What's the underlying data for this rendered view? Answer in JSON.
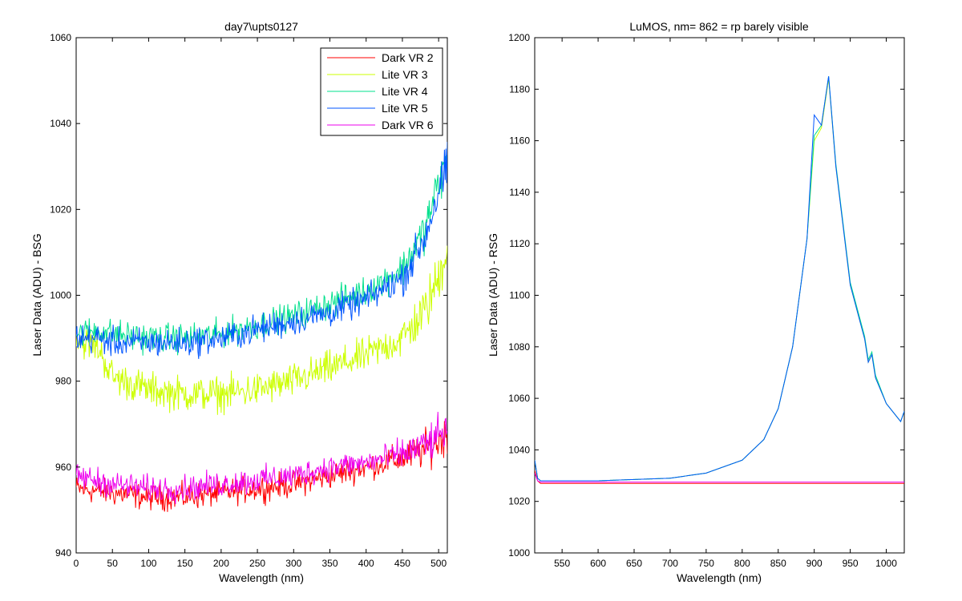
{
  "chart_data": [
    {
      "type": "line",
      "title": "day7\\upts0127",
      "xlabel": "Wavelength (nm)",
      "ylabel": "Laser Data (ADU) - BSG",
      "xlim": [
        0,
        512
      ],
      "ylim": [
        940,
        1060
      ],
      "xticks": [
        0,
        50,
        100,
        150,
        200,
        250,
        300,
        350,
        400,
        450,
        500
      ],
      "yticks": [
        940,
        960,
        980,
        1000,
        1020,
        1040,
        1060
      ],
      "legend": "top-right",
      "grid": false,
      "series": [
        {
          "name": "Dark VR 2",
          "color": "#ff0000",
          "noise": 4.5,
          "x": [
            0,
            50,
            100,
            150,
            200,
            250,
            300,
            350,
            400,
            450,
            480,
            500,
            512
          ],
          "y": [
            955,
            954,
            953,
            953,
            954,
            955,
            956,
            958,
            960,
            962,
            964,
            966,
            968
          ]
        },
        {
          "name": "Lite VR 3",
          "color": "#ccff00",
          "noise": 6,
          "x": [
            0,
            30,
            50,
            100,
            150,
            200,
            250,
            300,
            350,
            400,
            450,
            480,
            500,
            512
          ],
          "y": [
            990,
            988,
            981,
            978,
            977,
            977,
            978,
            980,
            983,
            986,
            990,
            996,
            1004,
            1012
          ]
        },
        {
          "name": "Lite VR 4",
          "color": "#00e08c",
          "noise": 5,
          "x": [
            0,
            30,
            50,
            100,
            150,
            200,
            250,
            300,
            350,
            400,
            450,
            480,
            500,
            512
          ],
          "y": [
            991,
            992,
            991,
            990,
            990,
            991,
            993,
            995,
            998,
            1001,
            1006,
            1015,
            1026,
            1032
          ]
        },
        {
          "name": "Lite VR 5",
          "color": "#0055ff",
          "noise": 5,
          "x": [
            0,
            30,
            50,
            100,
            150,
            200,
            250,
            300,
            350,
            400,
            450,
            480,
            500,
            512
          ],
          "y": [
            990,
            990,
            989,
            989,
            989,
            990,
            992,
            994,
            996,
            999,
            1004,
            1013,
            1024,
            1030
          ]
        },
        {
          "name": "Dark VR 6",
          "color": "#ee00ee",
          "noise": 4.5,
          "x": [
            0,
            50,
            100,
            150,
            200,
            250,
            300,
            350,
            400,
            450,
            480,
            500,
            512
          ],
          "y": [
            958,
            956,
            955,
            955,
            956,
            957,
            958,
            960,
            961,
            963,
            965,
            967,
            969
          ]
        }
      ]
    },
    {
      "type": "line",
      "title": "LuMOS, nm= 862 = rp barely visible",
      "xlabel": "Wavelength (nm)",
      "ylabel": "Laser Data (ADU) - RSG",
      "xlim": [
        512,
        1025
      ],
      "ylim": [
        1000,
        1200
      ],
      "xticks": [
        550,
        600,
        650,
        700,
        750,
        800,
        850,
        900,
        950,
        1000
      ],
      "yticks": [
        1000,
        1020,
        1040,
        1060,
        1080,
        1100,
        1120,
        1140,
        1160,
        1180,
        1200
      ],
      "grid": false,
      "series": [
        {
          "color": "#ff0000",
          "x": [
            512,
            516,
            520,
            600,
            700,
            800,
            900,
            1000,
            1025
          ],
          "y": [
            1032,
            1028,
            1027,
            1027,
            1027,
            1027,
            1027,
            1027,
            1027
          ]
        },
        {
          "color": "#ccff00",
          "x": [
            512,
            516,
            520,
            600,
            700,
            750,
            800,
            830,
            850,
            870,
            890,
            900,
            910,
            920,
            930,
            950,
            970,
            975,
            980,
            985,
            1000,
            1020,
            1025
          ],
          "y": [
            1036,
            1029,
            1028,
            1028,
            1029,
            1031,
            1036,
            1044,
            1056,
            1080,
            1122,
            1160,
            1165,
            1184,
            1150,
            1104,
            1083,
            1074,
            1077,
            1068,
            1058,
            1051,
            1055
          ]
        },
        {
          "color": "#00e08c",
          "x": [
            512,
            516,
            520,
            600,
            700,
            750,
            800,
            830,
            850,
            870,
            890,
            900,
            910,
            920,
            930,
            950,
            970,
            975,
            980,
            985,
            1000,
            1020,
            1025
          ],
          "y": [
            1036,
            1029,
            1028,
            1028,
            1029,
            1031,
            1036,
            1044,
            1056,
            1080,
            1122,
            1162,
            1166,
            1185,
            1151,
            1105,
            1084,
            1075,
            1078,
            1069,
            1058,
            1051,
            1055
          ]
        },
        {
          "color": "#0055ff",
          "x": [
            512,
            516,
            520,
            600,
            700,
            750,
            800,
            830,
            850,
            870,
            890,
            900,
            910,
            920,
            930,
            950,
            970,
            975,
            980,
            985,
            1000,
            1020,
            1025
          ],
          "y": [
            1036,
            1029,
            1028,
            1028,
            1029,
            1031,
            1036,
            1044,
            1056,
            1080,
            1122,
            1170,
            1166,
            1185,
            1150,
            1104,
            1083,
            1074,
            1077,
            1068,
            1058,
            1051,
            1055
          ]
        },
        {
          "color": "#ee00ee",
          "x": [
            512,
            516,
            520,
            600,
            700,
            800,
            900,
            1000,
            1025
          ],
          "y": [
            1031,
            1028,
            1027.5,
            1027.5,
            1027.5,
            1027.5,
            1027.5,
            1027.5,
            1027.5
          ]
        }
      ]
    }
  ]
}
